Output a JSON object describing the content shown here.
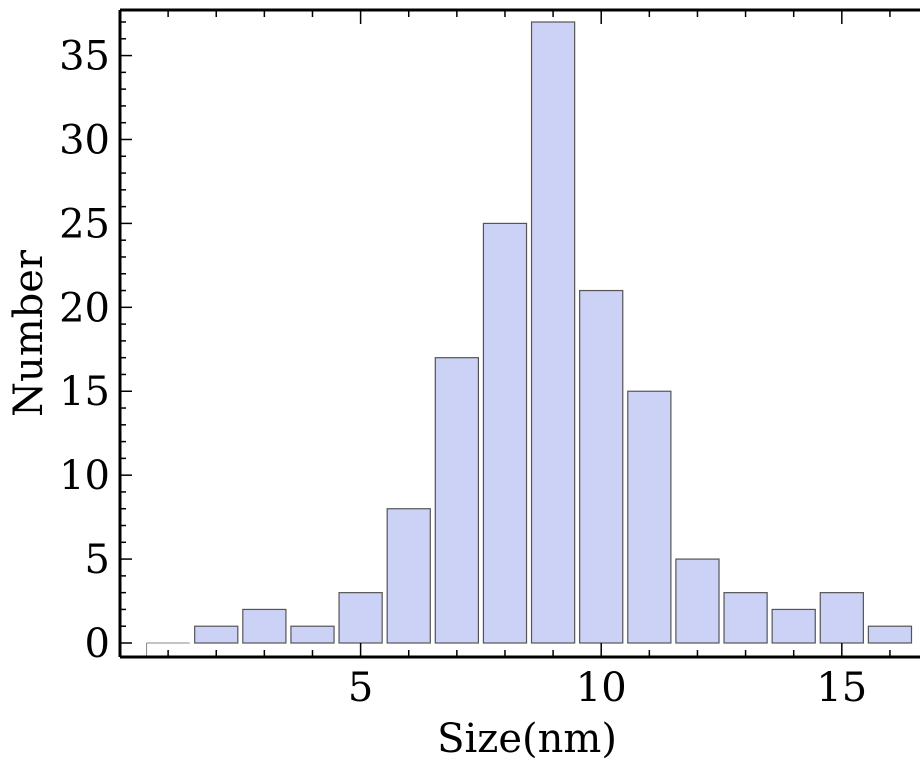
{
  "chart_data": {
    "type": "bar",
    "bin_width": 1,
    "bars": [
      {
        "x": 1.0,
        "value": 0
      },
      {
        "x": 2.0,
        "value": 1
      },
      {
        "x": 3.0,
        "value": 2
      },
      {
        "x": 4.0,
        "value": 1
      },
      {
        "x": 5.0,
        "value": 3
      },
      {
        "x": 6.0,
        "value": 8
      },
      {
        "x": 7.0,
        "value": 17
      },
      {
        "x": 8.0,
        "value": 25
      },
      {
        "x": 9.0,
        "value": 37
      },
      {
        "x": 10.0,
        "value": 21
      },
      {
        "x": 11.0,
        "value": 15
      },
      {
        "x": 12.0,
        "value": 5
      },
      {
        "x": 13.0,
        "value": 3
      },
      {
        "x": 14.0,
        "value": 2
      },
      {
        "x": 15.0,
        "value": 3
      },
      {
        "x": 16.0,
        "value": 1
      }
    ],
    "xlabel": "Size(nm)",
    "ylabel": "Number",
    "xlim": [
      0.0,
      16.5
    ],
    "ylim": [
      0,
      37
    ],
    "x_ticks": [
      5,
      10,
      15
    ],
    "y_ticks": [
      0,
      5,
      10,
      15,
      20,
      25,
      30,
      35
    ],
    "grid": false,
    "colors": {
      "bar_fill": "#CCD2F5",
      "bar_stroke": "#555555",
      "axis": "#000000"
    }
  }
}
